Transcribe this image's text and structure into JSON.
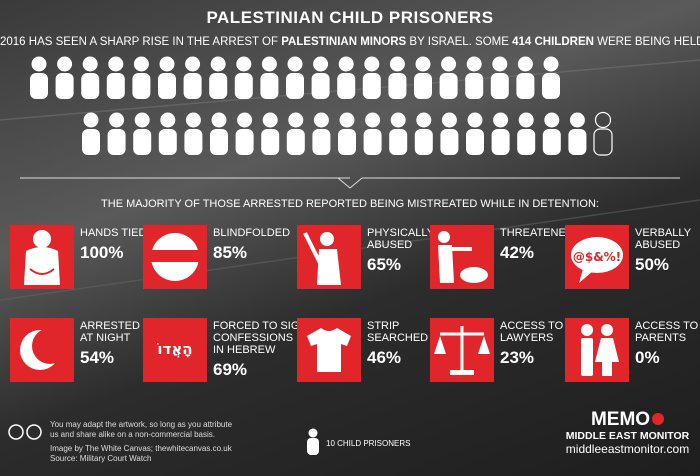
{
  "header": {
    "title": "PALESTINIAN CHILD PRISONERS",
    "subtitle": [
      "2016 HAS SEEN A SHARP RISE IN THE ARREST OF ",
      "PALESTINIAN MINORS",
      " BY ISRAEL. SOME ",
      "414 CHILDREN",
      " WERE BEING HELD IN ISRAELI JAILS IN APRIL"
    ],
    "children": 414
  },
  "legend": {
    "per_icon": 10,
    "text": "10 CHILD PRISONERS"
  },
  "heading": "THE MAJORITY OF THOSE ARRESTED REPORTED BEING MISTREATED WHILE IN DETENTION:",
  "items": [
    {
      "label": [
        "HANDS TIED"
      ],
      "pct": "100%"
    },
    {
      "label": [
        "BLINDFOLDED"
      ],
      "pct": "85%"
    },
    {
      "label": [
        "PHYSICALLY",
        "ABUSED"
      ],
      "pct": "65%"
    },
    {
      "label": [
        "THREATENED"
      ],
      "pct": "42%"
    },
    {
      "label": [
        "VERBALLY",
        "ABUSED"
      ],
      "pct": "50%",
      "icon_text": "@$&%!"
    },
    {
      "label": [
        "ARRESTED",
        "AT NIGHT"
      ],
      "pct": "54%"
    },
    {
      "label": [
        "FORCED TO SIGN",
        "CONFESSIONS",
        "IN HEBREW"
      ],
      "pct": "69%",
      "icon_text": "הָאֲדוֹ"
    },
    {
      "label": [
        "STRIP",
        "SEARCHED"
      ],
      "pct": "46%"
    },
    {
      "label": [
        "ACCESS TO",
        "LAWYERS"
      ],
      "pct": "23%"
    },
    {
      "label": [
        "ACCESS TO",
        "PARENTS"
      ],
      "pct": "0%"
    }
  ],
  "footer": {
    "license": [
      "You may adapt the artwork, so long as you attribute",
      "us and share alike on a non-commercial basis."
    ],
    "credit": "Image by The White Canvas; thewhitecanvas.co.uk",
    "source": "Source: Military Court Watch",
    "brand": "MEMO",
    "brand_sub": "MIDDLE EAST MONITOR",
    "url": "middleeastmonitor.com"
  }
}
